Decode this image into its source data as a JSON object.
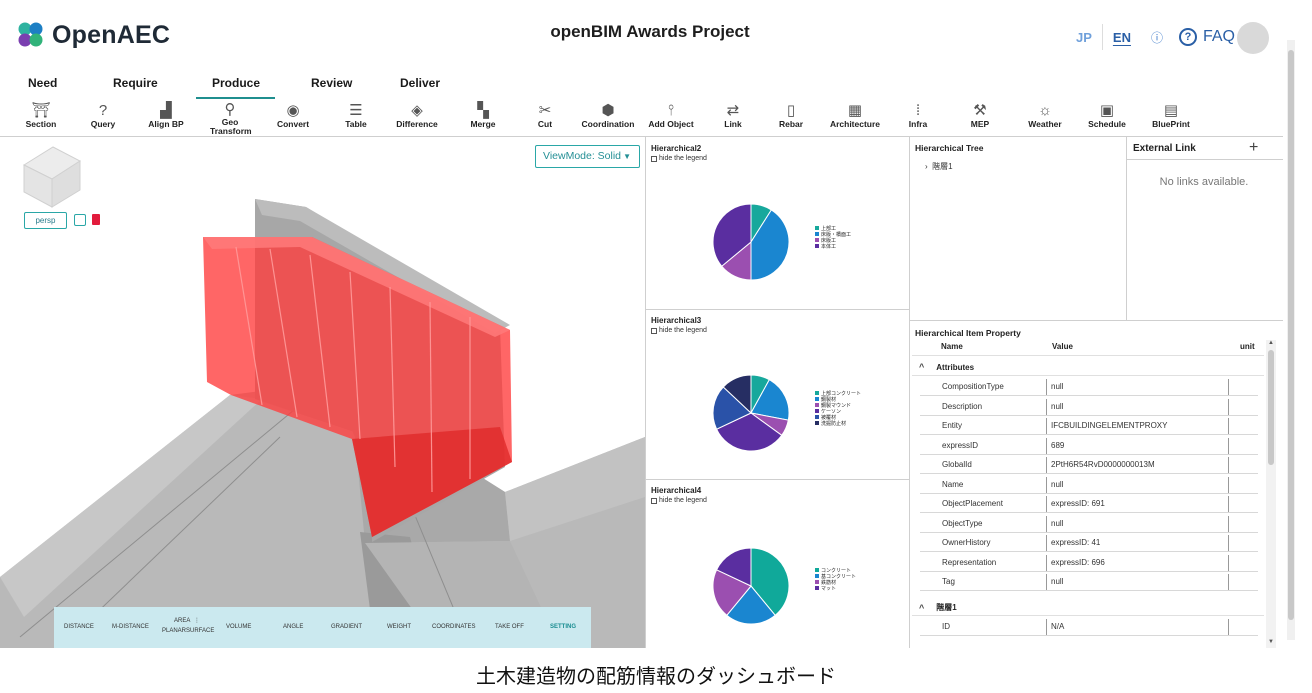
{
  "header": {
    "logo_text": "OpenAEC",
    "project_title": "openBIM Awards Project",
    "lang_jp": "JP",
    "lang_en": "EN",
    "info_icon": "info-icon",
    "faq_label": "FAQ"
  },
  "workflow_tabs": [
    {
      "label": "Need",
      "active": false
    },
    {
      "label": "Require",
      "active": false
    },
    {
      "label": "Produce",
      "active": true
    },
    {
      "label": "Review",
      "active": false
    },
    {
      "label": "Deliver",
      "active": false
    }
  ],
  "tools": [
    {
      "label": "Section",
      "icon": "section-icon"
    },
    {
      "label": "Query",
      "icon": "query-icon"
    },
    {
      "label": "Align BP",
      "icon": "align-icon"
    },
    {
      "label": "Geo Transform",
      "icon": "geo-transform-icon"
    },
    {
      "label": "Convert",
      "icon": "convert-icon"
    },
    {
      "label": "Table",
      "icon": "table-icon"
    },
    {
      "label": "Difference",
      "icon": "difference-icon"
    },
    {
      "label": "Merge",
      "icon": "merge-icon"
    },
    {
      "label": "Cut",
      "icon": "cut-icon"
    },
    {
      "label": "Coordination",
      "icon": "coordination-icon"
    },
    {
      "label": "Add Object",
      "icon": "add-object-icon"
    },
    {
      "label": "Link",
      "icon": "link-icon"
    },
    {
      "label": "Rebar",
      "icon": "rebar-icon"
    },
    {
      "label": "Architecture",
      "icon": "architecture-icon"
    },
    {
      "label": "Infra",
      "icon": "infra-icon"
    },
    {
      "label": "MEP",
      "icon": "mep-icon"
    },
    {
      "label": "Weather",
      "icon": "weather-icon"
    },
    {
      "label": "Schedule",
      "icon": "schedule-icon"
    },
    {
      "label": "BluePrint",
      "icon": "blueprint-icon"
    }
  ],
  "viewport": {
    "persp_label": "persp",
    "viewmode_label": "ViewMode: Solid",
    "model_color": "#ff3b3b",
    "measure_items": [
      "DISTANCE",
      "M-DISTANCE",
      "AREA",
      "PLANARSURFACE",
      "VOLUME",
      "ANGLE",
      "GRADIENT",
      "WEIGHT",
      "COORDINATES",
      "TAKE OFF",
      "SETTING"
    ]
  },
  "pie_panels": [
    {
      "title": "Hierarchical2",
      "hide_legend_label": "hide the legend",
      "slices": [
        {
          "label": "上部工",
          "value": 9,
          "color": "#17a89c"
        },
        {
          "label": "床版・橋面工",
          "value": 41,
          "color": "#1a86d0"
        },
        {
          "label": "床版工",
          "value": 14,
          "color": "#9b4fb0"
        },
        {
          "label": "本体工",
          "value": 36,
          "color": "#5a2ea0"
        }
      ]
    },
    {
      "title": "Hierarchical3",
      "hide_legend_label": "hide the legend",
      "slices": [
        {
          "label": "上部コンクリート",
          "value": 8,
          "color": "#17a89c"
        },
        {
          "label": "鋼製材",
          "value": 20,
          "color": "#1a86d0"
        },
        {
          "label": "鋼製マウンド",
          "value": 7,
          "color": "#9b4fb0"
        },
        {
          "label": "ケーソン",
          "value": 33,
          "color": "#5a2ea0"
        },
        {
          "label": "被覆材",
          "value": 19,
          "color": "#2a52a8"
        },
        {
          "label": "洗掘防止材",
          "value": 13,
          "color": "#262e63"
        }
      ]
    },
    {
      "title": "Hierarchical4",
      "hide_legend_label": "hide the legend",
      "slices": [
        {
          "label": "コンクリート",
          "value": 39,
          "color": "#10a99a"
        },
        {
          "label": "基コンクリート",
          "value": 22,
          "color": "#1a86d0"
        },
        {
          "label": "鉄筋材",
          "value": 21,
          "color": "#9b4fb0"
        },
        {
          "label": "マット",
          "value": 18,
          "color": "#5a2ea0"
        }
      ]
    }
  ],
  "tree": {
    "title": "Hierarchical Tree",
    "items": [
      "階層1"
    ]
  },
  "external": {
    "title": "External Link",
    "empty": "No links available."
  },
  "properties": {
    "title": "Hierarchical Item Property",
    "col_name": "Name",
    "col_value": "Value",
    "col_unit": "unit",
    "group1": "Attributes",
    "rows": [
      {
        "name": "CompositionType",
        "value": "null"
      },
      {
        "name": "Description",
        "value": "null"
      },
      {
        "name": "Entity",
        "value": "IFCBUILDINGELEMENTPROXY"
      },
      {
        "name": "expressID",
        "value": "689"
      },
      {
        "name": "GlobalId",
        "value": "2PtH6R54RvD0000000013M"
      },
      {
        "name": "Name",
        "value": "null"
      },
      {
        "name": "ObjectPlacement",
        "value": "expressID: 691"
      },
      {
        "name": "ObjectType",
        "value": "null"
      },
      {
        "name": "OwnerHistory",
        "value": "expressID: 41"
      },
      {
        "name": "Representation",
        "value": "expressID: 696"
      },
      {
        "name": "Tag",
        "value": "null"
      }
    ],
    "group2": "階層1",
    "rows2": [
      {
        "name": "ID",
        "value": "N/A"
      }
    ]
  },
  "caption": "土木建造物の配筋情報のダッシュボード"
}
